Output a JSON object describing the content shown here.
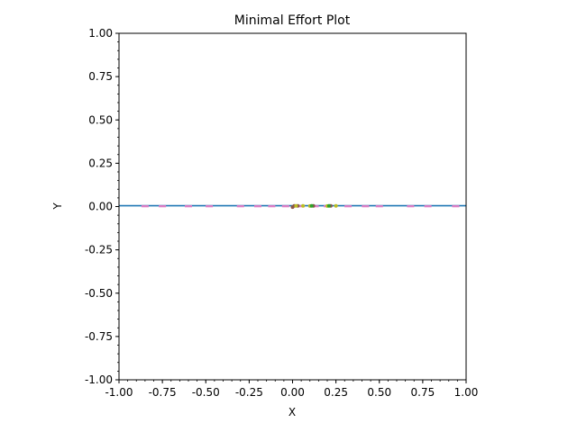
{
  "chart_data": {
    "type": "line",
    "title": "Minimal Effort Plot",
    "xlabel": "X",
    "ylabel": "Y",
    "xlim": [
      -1.0,
      1.0
    ],
    "ylim": [
      -1.0,
      1.0
    ],
    "xticks": [
      "-1.00",
      "-0.75",
      "-0.50",
      "-0.25",
      "0.00",
      "0.25",
      "0.50",
      "0.75",
      "1.00"
    ],
    "yticks": [
      "1.00",
      "0.75",
      "0.50",
      "0.25",
      "0.00",
      "-0.25",
      "-0.50",
      "-0.75",
      "-1.00"
    ],
    "grid": false,
    "series": [
      {
        "kind": "line",
        "color": "#1f77b4",
        "x": [
          -1.0,
          1.0
        ],
        "y": [
          0.005,
          0.005
        ]
      },
      {
        "kind": "dashes",
        "color": "#e377c2",
        "x": [
          -0.85,
          -0.75,
          -0.6,
          -0.48,
          -0.3,
          -0.2,
          -0.12,
          -0.04,
          0.05,
          0.13,
          0.2,
          0.32,
          0.42,
          0.5,
          0.68,
          0.78,
          0.94
        ],
        "y": [
          0.003,
          0.003,
          0.003,
          0.003,
          0.003,
          0.003,
          0.003,
          0.003,
          0.003,
          0.003,
          0.003,
          0.003,
          0.003,
          0.003,
          0.003,
          0.003,
          0.003
        ]
      },
      {
        "kind": "points",
        "color": "#8c564b",
        "x": [
          0.01,
          0.0,
          0.03,
          0.12,
          0.22
        ],
        "y": [
          0.004,
          -0.003,
          0.004,
          0.004,
          0.004
        ]
      },
      {
        "kind": "points",
        "color": "#bcbd22",
        "x": [
          0.02,
          0.06,
          0.1,
          0.2,
          0.25
        ],
        "y": [
          0.004,
          0.004,
          0.003,
          0.003,
          0.004
        ]
      },
      {
        "kind": "points",
        "color": "#2ca02c",
        "x": [
          0.11,
          0.21
        ],
        "y": [
          0.004,
          0.004
        ]
      }
    ]
  }
}
